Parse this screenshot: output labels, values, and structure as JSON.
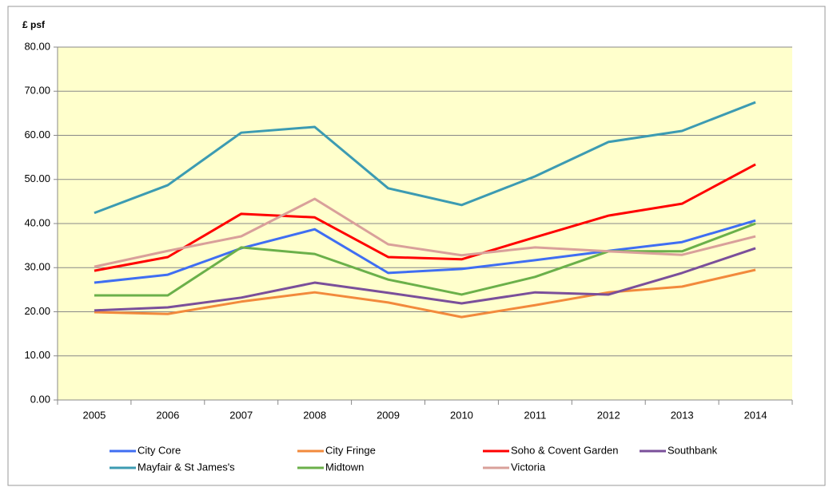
{
  "chart_data": {
    "type": "line",
    "y_axis_label": "£ psf",
    "categories": [
      "2005",
      "2006",
      "2007",
      "2008",
      "2009",
      "2010",
      "2011",
      "2012",
      "2013",
      "2014"
    ],
    "series": [
      {
        "name": "City Core",
        "color": "#3f6ef2",
        "values": [
          26.6,
          28.4,
          34.4,
          38.7,
          28.8,
          29.7,
          31.7,
          33.8,
          35.8,
          40.7
        ]
      },
      {
        "name": "City Fringe",
        "color": "#f28a3c",
        "values": [
          19.9,
          19.5,
          22.3,
          24.4,
          22.1,
          18.8,
          21.5,
          24.4,
          25.7,
          29.5
        ]
      },
      {
        "name": "Soho & Covent Garden",
        "color": "#ff0000",
        "values": [
          29.3,
          32.4,
          42.2,
          41.4,
          32.4,
          31.9,
          36.9,
          41.8,
          44.5,
          53.4
        ]
      },
      {
        "name": "Southbank",
        "color": "#7a4f9a",
        "values": [
          20.3,
          21.0,
          23.2,
          26.6,
          24.3,
          21.9,
          24.4,
          23.9,
          28.8,
          34.4
        ]
      },
      {
        "name": "Mayfair & St James's",
        "color": "#3c9bb2",
        "values": [
          42.4,
          48.7,
          60.6,
          61.9,
          48.0,
          44.2,
          50.7,
          58.5,
          61.0,
          67.5
        ]
      },
      {
        "name": "Midtown",
        "color": "#6bb04a",
        "values": [
          23.7,
          23.7,
          34.6,
          33.1,
          27.3,
          23.9,
          27.9,
          33.7,
          33.7,
          40.0
        ]
      },
      {
        "name": "Victoria",
        "color": "#d9a09a",
        "values": [
          30.2,
          33.8,
          37.1,
          45.6,
          35.3,
          32.8,
          34.6,
          33.7,
          32.9,
          37.1
        ]
      }
    ],
    "ylim": [
      0,
      80
    ],
    "yticks": [
      {
        "value": 0,
        "label": "0.00"
      },
      {
        "value": 10,
        "label": "10.00"
      },
      {
        "value": 20,
        "label": "20.00"
      },
      {
        "value": 30,
        "label": "30.00"
      },
      {
        "value": 40,
        "label": "40.00"
      },
      {
        "value": 50,
        "label": "50.00"
      },
      {
        "value": 60,
        "label": "60.00"
      },
      {
        "value": 70,
        "label": "70.00"
      },
      {
        "value": 80,
        "label": "80.00"
      }
    ],
    "grid": true,
    "plot_background": "#ffffcc",
    "legend": "bottom"
  }
}
